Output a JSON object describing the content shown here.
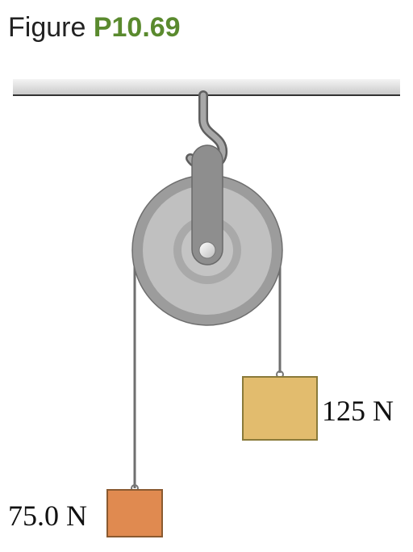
{
  "heading": {
    "prefix": "Figure",
    "number": "P10.69"
  },
  "masses": {
    "left": {
      "label": "75.0 N",
      "color": "#e08a50"
    },
    "right": {
      "label": "125 N",
      "color": "#e2bc6e"
    }
  },
  "colors": {
    "heading_accent": "#5a8a2e",
    "pulley": "#9a9a9a",
    "rope": "#7a7a7a",
    "ceiling": "#cfcfcf"
  }
}
